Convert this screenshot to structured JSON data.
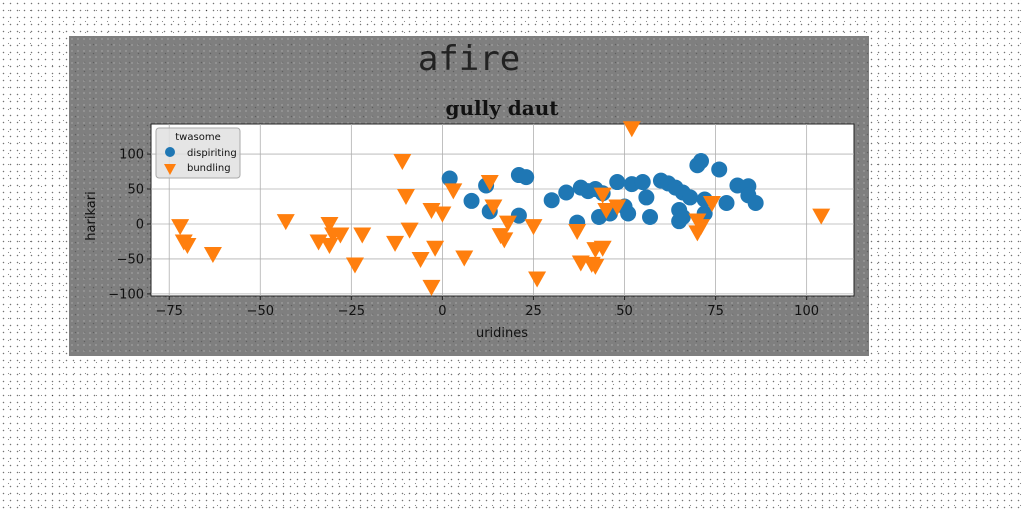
{
  "chart_data": {
    "type": "scatter",
    "suptitle": "afire",
    "title": "gully daut",
    "xlabel": "uridines",
    "ylabel": "harikari",
    "xlim": [
      -80,
      113
    ],
    "ylim": [
      -103,
      143
    ],
    "xticks": [
      -75,
      -50,
      -25,
      0,
      25,
      50,
      75,
      100
    ],
    "yticks": [
      -100,
      -50,
      0,
      50,
      100
    ],
    "grid": true,
    "legend": {
      "title": "twasome",
      "placement": "top-left"
    },
    "series": [
      {
        "name": "dispiriting",
        "marker": "circle",
        "color": "#1f77b4",
        "points": [
          [
            2,
            65
          ],
          [
            8,
            33
          ],
          [
            12,
            55
          ],
          [
            13,
            18
          ],
          [
            21,
            70
          ],
          [
            23,
            67
          ],
          [
            21,
            12
          ],
          [
            30,
            34
          ],
          [
            34,
            45
          ],
          [
            38,
            52
          ],
          [
            40,
            47
          ],
          [
            42,
            50
          ],
          [
            44,
            44
          ],
          [
            37,
            2
          ],
          [
            43,
            10
          ],
          [
            46,
            15
          ],
          [
            48,
            60
          ],
          [
            50,
            25
          ],
          [
            51,
            15
          ],
          [
            52,
            57
          ],
          [
            55,
            60
          ],
          [
            56,
            38
          ],
          [
            57,
            10
          ],
          [
            60,
            62
          ],
          [
            62,
            58
          ],
          [
            64,
            52
          ],
          [
            65,
            20
          ],
          [
            66,
            45
          ],
          [
            66,
            10
          ],
          [
            65,
            4
          ],
          [
            68,
            38
          ],
          [
            70,
            84
          ],
          [
            71,
            90
          ],
          [
            72,
            15
          ],
          [
            72,
            35
          ],
          [
            76,
            78
          ],
          [
            78,
            30
          ],
          [
            81,
            55
          ],
          [
            84,
            54
          ],
          [
            84,
            41
          ],
          [
            86,
            30
          ]
        ]
      },
      {
        "name": "bundling",
        "marker": "triangle-down",
        "color": "#ff7f0e",
        "points": [
          [
            -72,
            -3
          ],
          [
            -71,
            -25
          ],
          [
            -70,
            -30
          ],
          [
            -63,
            -43
          ],
          [
            -43,
            4
          ],
          [
            -34,
            -25
          ],
          [
            -31,
            0
          ],
          [
            -30,
            -15
          ],
          [
            -31,
            -30
          ],
          [
            -28,
            -15
          ],
          [
            -22,
            -15
          ],
          [
            -24,
            -58
          ],
          [
            -13,
            -27
          ],
          [
            -11,
            90
          ],
          [
            -10,
            40
          ],
          [
            -9,
            -8
          ],
          [
            -6,
            -50
          ],
          [
            -3,
            20
          ],
          [
            -3,
            -90
          ],
          [
            -2,
            -34
          ],
          [
            0,
            15
          ],
          [
            3,
            48
          ],
          [
            6,
            -48
          ],
          [
            13,
            60
          ],
          [
            14,
            25
          ],
          [
            16,
            -16
          ],
          [
            17,
            -22
          ],
          [
            18,
            2
          ],
          [
            25,
            -3
          ],
          [
            26,
            -78
          ],
          [
            37,
            -10
          ],
          [
            38,
            -55
          ],
          [
            41,
            -57
          ],
          [
            42,
            -60
          ],
          [
            42,
            -36
          ],
          [
            44,
            -34
          ],
          [
            44,
            42
          ],
          [
            45,
            20
          ],
          [
            48,
            25
          ],
          [
            52,
            137
          ],
          [
            70,
            5
          ],
          [
            70,
            -12
          ],
          [
            71,
            -3
          ],
          [
            74,
            30
          ],
          [
            104,
            12
          ]
        ]
      }
    ]
  }
}
